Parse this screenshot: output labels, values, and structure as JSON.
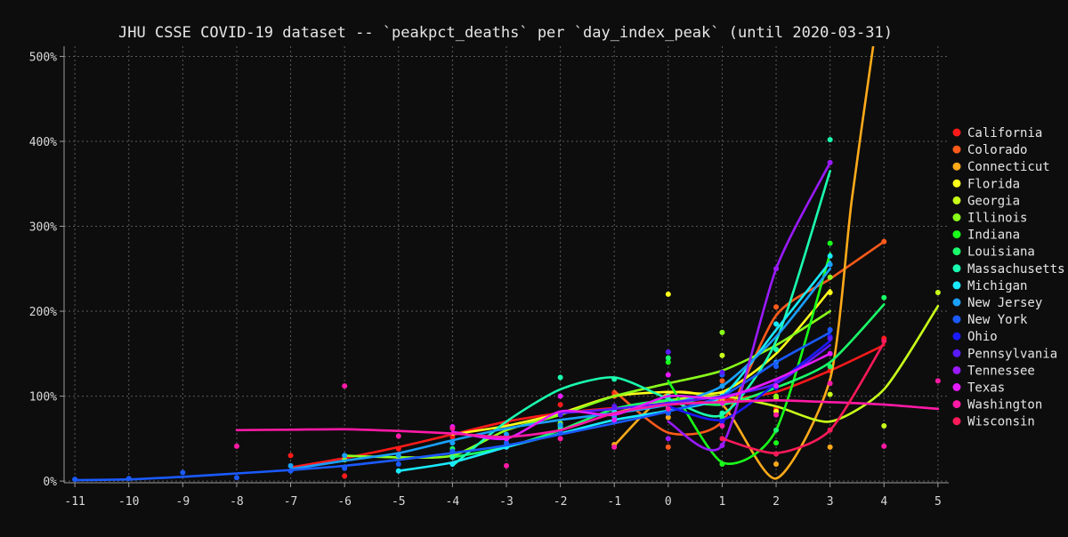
{
  "chart_data": {
    "type": "line",
    "title": "JHU CSSE COVID-19 dataset -- `peakpct_deaths` per `day_index_peak` (until 2020-03-31)",
    "xlabel": "",
    "ylabel": "",
    "xlim": [
      -11.2,
      5.2
    ],
    "ylim": [
      -2,
      512
    ],
    "x_ticks": [
      -11,
      -10,
      -9,
      -8,
      -7,
      -6,
      -5,
      -4,
      -3,
      -2,
      -1,
      0,
      1,
      2,
      3,
      4,
      5
    ],
    "y_ticks": [
      0,
      100,
      200,
      300,
      400,
      500
    ],
    "y_tick_labels": [
      "0%",
      "100%",
      "200%",
      "300%",
      "400%",
      "500%"
    ],
    "grid": true,
    "legend_position": "right",
    "series": [
      {
        "name": "California",
        "color": "#ff1a1a",
        "points": [
          [
            -7,
            30
          ],
          [
            -6,
            6
          ],
          [
            -5,
            38
          ],
          [
            -4,
            52
          ],
          [
            -3,
            68
          ],
          [
            -2,
            90
          ],
          [
            -1,
            104
          ],
          [
            0,
            100
          ],
          [
            1,
            92
          ],
          [
            2,
            85
          ],
          [
            3,
            130
          ],
          [
            4,
            168
          ]
        ],
        "trend": [
          [
            -7,
            16
          ],
          [
            -6,
            27
          ],
          [
            -5,
            40
          ],
          [
            -4,
            55
          ],
          [
            -3,
            70
          ],
          [
            -2,
            80
          ],
          [
            -1,
            86
          ],
          [
            0,
            90
          ],
          [
            1,
            95
          ],
          [
            2,
            105
          ],
          [
            3,
            130
          ],
          [
            4,
            160
          ]
        ]
      },
      {
        "name": "Colorado",
        "color": "#ff5a1a",
        "points": [
          [
            -1,
            100
          ],
          [
            0,
            40
          ],
          [
            1,
            118
          ],
          [
            2,
            205
          ],
          [
            4,
            282
          ]
        ],
        "trend": [
          [
            -1,
            106
          ],
          [
            0,
            57
          ],
          [
            1,
            70
          ],
          [
            2,
            195
          ],
          [
            3,
            238
          ],
          [
            4,
            282
          ]
        ]
      },
      {
        "name": "Connecticut",
        "color": "#ffaa1a",
        "points": [
          [
            -1,
            43
          ],
          [
            0,
            75
          ],
          [
            1,
            96
          ],
          [
            2,
            20
          ],
          [
            3,
            40
          ]
        ],
        "trend": [
          [
            -1,
            42
          ],
          [
            0,
            103
          ],
          [
            1,
            90
          ],
          [
            2,
            3
          ],
          [
            3,
            120
          ],
          [
            3.4,
            330
          ],
          [
            3.8,
            512
          ]
        ]
      },
      {
        "name": "Florida",
        "color": "#ffff1a",
        "points": [
          [
            0,
            220
          ],
          [
            1,
            103
          ],
          [
            2,
            82
          ],
          [
            3,
            222
          ]
        ],
        "trend": [
          [
            -4,
            55
          ],
          [
            -3,
            65
          ],
          [
            -2,
            80
          ],
          [
            -1,
            100
          ],
          [
            0,
            105
          ],
          [
            1,
            105
          ],
          [
            2,
            150
          ],
          [
            3,
            225
          ]
        ]
      },
      {
        "name": "Georgia",
        "color": "#c8ff1a",
        "points": [
          [
            1,
            148
          ],
          [
            2,
            98
          ],
          [
            3,
            102
          ],
          [
            4,
            65
          ],
          [
            5,
            222
          ]
        ],
        "trend": [
          [
            -1,
            80
          ],
          [
            0,
            95
          ],
          [
            1,
            100
          ],
          [
            2,
            88
          ],
          [
            3,
            70
          ],
          [
            4,
            108
          ],
          [
            5,
            206
          ]
        ]
      },
      {
        "name": "Illinois",
        "color": "#8aff1a",
        "points": [
          [
            -6,
            25
          ],
          [
            -5,
            28
          ],
          [
            -4,
            30
          ],
          [
            -3,
            50
          ],
          [
            -2,
            68
          ],
          [
            -1,
            78
          ],
          [
            0,
            88
          ],
          [
            1,
            175
          ],
          [
            2,
            100
          ],
          [
            3,
            240
          ]
        ],
        "trend": [
          [
            -6,
            30
          ],
          [
            -5,
            28
          ],
          [
            -4,
            30
          ],
          [
            -3,
            60
          ],
          [
            -2,
            78
          ],
          [
            -1,
            100
          ],
          [
            0,
            115
          ],
          [
            1,
            130
          ],
          [
            2,
            160
          ],
          [
            3,
            200
          ]
        ]
      },
      {
        "name": "Indiana",
        "color": "#1aff1a",
        "points": [
          [
            0,
            140
          ],
          [
            1,
            20
          ],
          [
            2,
            45
          ],
          [
            3,
            280
          ]
        ],
        "trend": [
          [
            0,
            118
          ],
          [
            1,
            22
          ],
          [
            2,
            60
          ],
          [
            3,
            268
          ]
        ]
      },
      {
        "name": "Louisiana",
        "color": "#1aff6a",
        "points": [
          [
            -4,
            38
          ],
          [
            -3,
            42
          ],
          [
            -2,
            62
          ],
          [
            -1,
            80
          ],
          [
            0,
            145
          ],
          [
            1,
            75
          ],
          [
            2,
            60
          ],
          [
            3,
            135
          ],
          [
            4,
            216
          ]
        ],
        "trend": [
          [
            -4,
            28
          ],
          [
            -3,
            40
          ],
          [
            -2,
            60
          ],
          [
            -1,
            85
          ],
          [
            0,
            95
          ],
          [
            1,
            90
          ],
          [
            2,
            110
          ],
          [
            3,
            140
          ],
          [
            4,
            208
          ]
        ]
      },
      {
        "name": "Massachusetts",
        "color": "#1affb0",
        "points": [
          [
            -4,
            28
          ],
          [
            -3,
            50
          ],
          [
            -2,
            122
          ],
          [
            -1,
            120
          ],
          [
            0,
            100
          ],
          [
            1,
            80
          ],
          [
            2,
            155
          ],
          [
            3,
            402
          ]
        ],
        "trend": [
          [
            -4,
            18
          ],
          [
            -3,
            70
          ],
          [
            -2,
            108
          ],
          [
            -1,
            122
          ],
          [
            0,
            97
          ],
          [
            1,
            78
          ],
          [
            2,
            165
          ],
          [
            3,
            365
          ]
        ]
      },
      {
        "name": "Michigan",
        "color": "#1aeaff",
        "points": [
          [
            -5,
            12
          ],
          [
            -4,
            20
          ],
          [
            -3,
            40
          ],
          [
            -2,
            65
          ],
          [
            -1,
            82
          ],
          [
            0,
            90
          ],
          [
            1,
            100
          ],
          [
            2,
            185
          ],
          [
            3,
            265
          ]
        ],
        "trend": [
          [
            -5,
            12
          ],
          [
            -4,
            22
          ],
          [
            -3,
            40
          ],
          [
            -2,
            56
          ],
          [
            -1,
            72
          ],
          [
            0,
            83
          ],
          [
            1,
            100
          ],
          [
            2,
            178
          ],
          [
            3,
            258
          ]
        ]
      },
      {
        "name": "New Jersey",
        "color": "#1aa0ff",
        "points": [
          [
            -7,
            18
          ],
          [
            -6,
            30
          ],
          [
            -5,
            30
          ],
          [
            -4,
            45
          ],
          [
            -3,
            55
          ],
          [
            -2,
            66
          ],
          [
            -1,
            76
          ],
          [
            0,
            80
          ],
          [
            1,
            112
          ],
          [
            2,
            140
          ],
          [
            3,
            255
          ]
        ],
        "trend": [
          [
            -7,
            14
          ],
          [
            -6,
            24
          ],
          [
            -5,
            33
          ],
          [
            -4,
            48
          ],
          [
            -3,
            62
          ],
          [
            -2,
            72
          ],
          [
            -1,
            80
          ],
          [
            0,
            90
          ],
          [
            1,
            112
          ],
          [
            2,
            170
          ],
          [
            3,
            250
          ]
        ]
      },
      {
        "name": "New York",
        "color": "#1a5aff",
        "points": [
          [
            -11,
            2
          ],
          [
            -10,
            3
          ],
          [
            -9,
            10
          ],
          [
            -8,
            4
          ],
          [
            -7,
            12
          ],
          [
            -6,
            15
          ],
          [
            -5,
            20
          ],
          [
            -4,
            35
          ],
          [
            -3,
            45
          ],
          [
            -2,
            57
          ],
          [
            -1,
            70
          ],
          [
            0,
            80
          ],
          [
            1,
            125
          ],
          [
            2,
            135
          ],
          [
            3,
            178
          ]
        ],
        "trend": [
          [
            -11,
            1
          ],
          [
            -10,
            2
          ],
          [
            -9,
            5
          ],
          [
            -8,
            9
          ],
          [
            -7,
            13
          ],
          [
            -6,
            18
          ],
          [
            -5,
            25
          ],
          [
            -4,
            33
          ],
          [
            -3,
            42
          ],
          [
            -2,
            55
          ],
          [
            -1,
            68
          ],
          [
            0,
            82
          ],
          [
            1,
            100
          ],
          [
            2,
            140
          ],
          [
            3,
            175
          ]
        ]
      },
      {
        "name": "Ohio",
        "color": "#1a1aff",
        "points": [
          [
            0,
            90
          ],
          [
            1,
            70
          ],
          [
            2,
            110
          ],
          [
            3,
            170
          ]
        ],
        "trend": [
          [
            0,
            88
          ],
          [
            1,
            72
          ],
          [
            2,
            115
          ],
          [
            3,
            165
          ]
        ]
      },
      {
        "name": "Pennsylvania",
        "color": "#5a1aff",
        "points": [
          [
            -2,
            78
          ],
          [
            -1,
            88
          ],
          [
            0,
            152
          ],
          [
            1,
            128
          ],
          [
            2,
            118
          ],
          [
            3,
            168
          ]
        ],
        "trend": [
          [
            -2,
            80
          ],
          [
            -1,
            85
          ],
          [
            0,
            92
          ],
          [
            1,
            100
          ],
          [
            2,
            115
          ],
          [
            3,
            160
          ]
        ]
      },
      {
        "name": "Tennessee",
        "color": "#9a1aff",
        "points": [
          [
            0,
            50
          ],
          [
            1,
            42
          ],
          [
            2,
            250
          ],
          [
            3,
            375
          ]
        ],
        "trend": [
          [
            0,
            70
          ],
          [
            1,
            42
          ],
          [
            2,
            250
          ],
          [
            3,
            375
          ]
        ]
      },
      {
        "name": "Texas",
        "color": "#e61aff",
        "points": [
          [
            -4,
            64
          ],
          [
            -3,
            50
          ],
          [
            -2,
            100
          ],
          [
            -1,
            72
          ],
          [
            0,
            125
          ],
          [
            1,
            92
          ],
          [
            2,
            112
          ],
          [
            3,
            150
          ]
        ],
        "trend": [
          [
            -4,
            58
          ],
          [
            -3,
            50
          ],
          [
            -2,
            82
          ],
          [
            -1,
            78
          ],
          [
            0,
            100
          ],
          [
            1,
            98
          ],
          [
            2,
            120
          ],
          [
            3,
            150
          ]
        ]
      },
      {
        "name": "Washington",
        "color": "#ff1aa6",
        "points": [
          [
            -8,
            41
          ],
          [
            -6,
            112
          ],
          [
            -5,
            53
          ],
          [
            -4,
            62
          ],
          [
            -3,
            18
          ],
          [
            -2,
            50
          ],
          [
            -1,
            40
          ],
          [
            0,
            85
          ],
          [
            1,
            65
          ],
          [
            2,
            78
          ],
          [
            3,
            115
          ],
          [
            4,
            41
          ],
          [
            5,
            118
          ]
        ],
        "trend": [
          [
            -8,
            60
          ],
          [
            -7,
            60.5
          ],
          [
            -6,
            61
          ],
          [
            -5,
            59
          ],
          [
            -4,
            56
          ],
          [
            -3,
            52
          ],
          [
            -2,
            60
          ],
          [
            -1,
            80
          ],
          [
            0,
            90
          ],
          [
            1,
            93
          ],
          [
            2,
            95
          ],
          [
            3,
            93
          ],
          [
            4,
            90
          ],
          [
            5,
            85
          ]
        ]
      },
      {
        "name": "Wisconsin",
        "color": "#ff1a5a",
        "points": [
          [
            1,
            50
          ],
          [
            2,
            32
          ],
          [
            3,
            60
          ],
          [
            4,
            165
          ]
        ],
        "trend": [
          [
            1,
            50
          ],
          [
            2,
            33
          ],
          [
            3,
            60
          ],
          [
            4,
            163
          ]
        ]
      }
    ]
  }
}
